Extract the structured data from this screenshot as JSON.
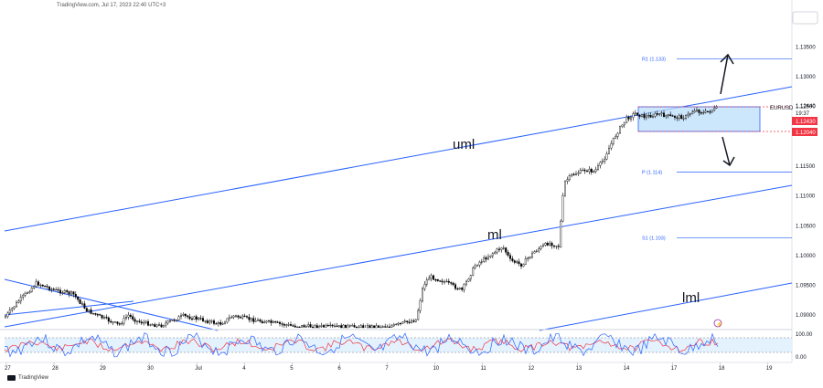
{
  "header": {
    "text": "TradingView.com, Jul 17, 2023 22:40 UTC+3"
  },
  "footer": {
    "brand": "TradingView"
  },
  "chart_data": {
    "type": "candlestick",
    "symbol": "EURUSD",
    "countdown": "19:37",
    "x_ticks": [
      "27",
      "28",
      "29",
      "30",
      "Jul",
      "4",
      "5",
      "6",
      "7",
      "10",
      "11",
      "12",
      "13",
      "14",
      "17",
      "18",
      "19"
    ],
    "y_ticks": [
      1.135,
      1.13,
      1.125,
      1.115,
      1.11,
      1.105,
      1.1,
      1.095,
      1.09
    ],
    "ylim": [
      1.0885,
      1.1395
    ],
    "price_labels": {
      "current": "1.12440",
      "range_high": "1.12430",
      "range_low": "1.12040"
    },
    "pivots": [
      {
        "label": "R1 (1.133)",
        "value": 1.133
      },
      {
        "label": "P (1.114)",
        "value": 1.114
      },
      {
        "label": "S1 (1.103)",
        "value": 1.103
      }
    ],
    "channel_labels": {
      "upper": "uml",
      "median": "ml",
      "lower": "lml"
    },
    "rsi_ticks": [
      "100.00",
      "0.00"
    ],
    "colors": {
      "up": "#000000",
      "down": "#000000",
      "line": "#2962ff",
      "range_fill": "#bbdefb",
      "price_label": "#f23645",
      "rsi": "#2962ff",
      "rsi_signal": "#f23645"
    }
  }
}
